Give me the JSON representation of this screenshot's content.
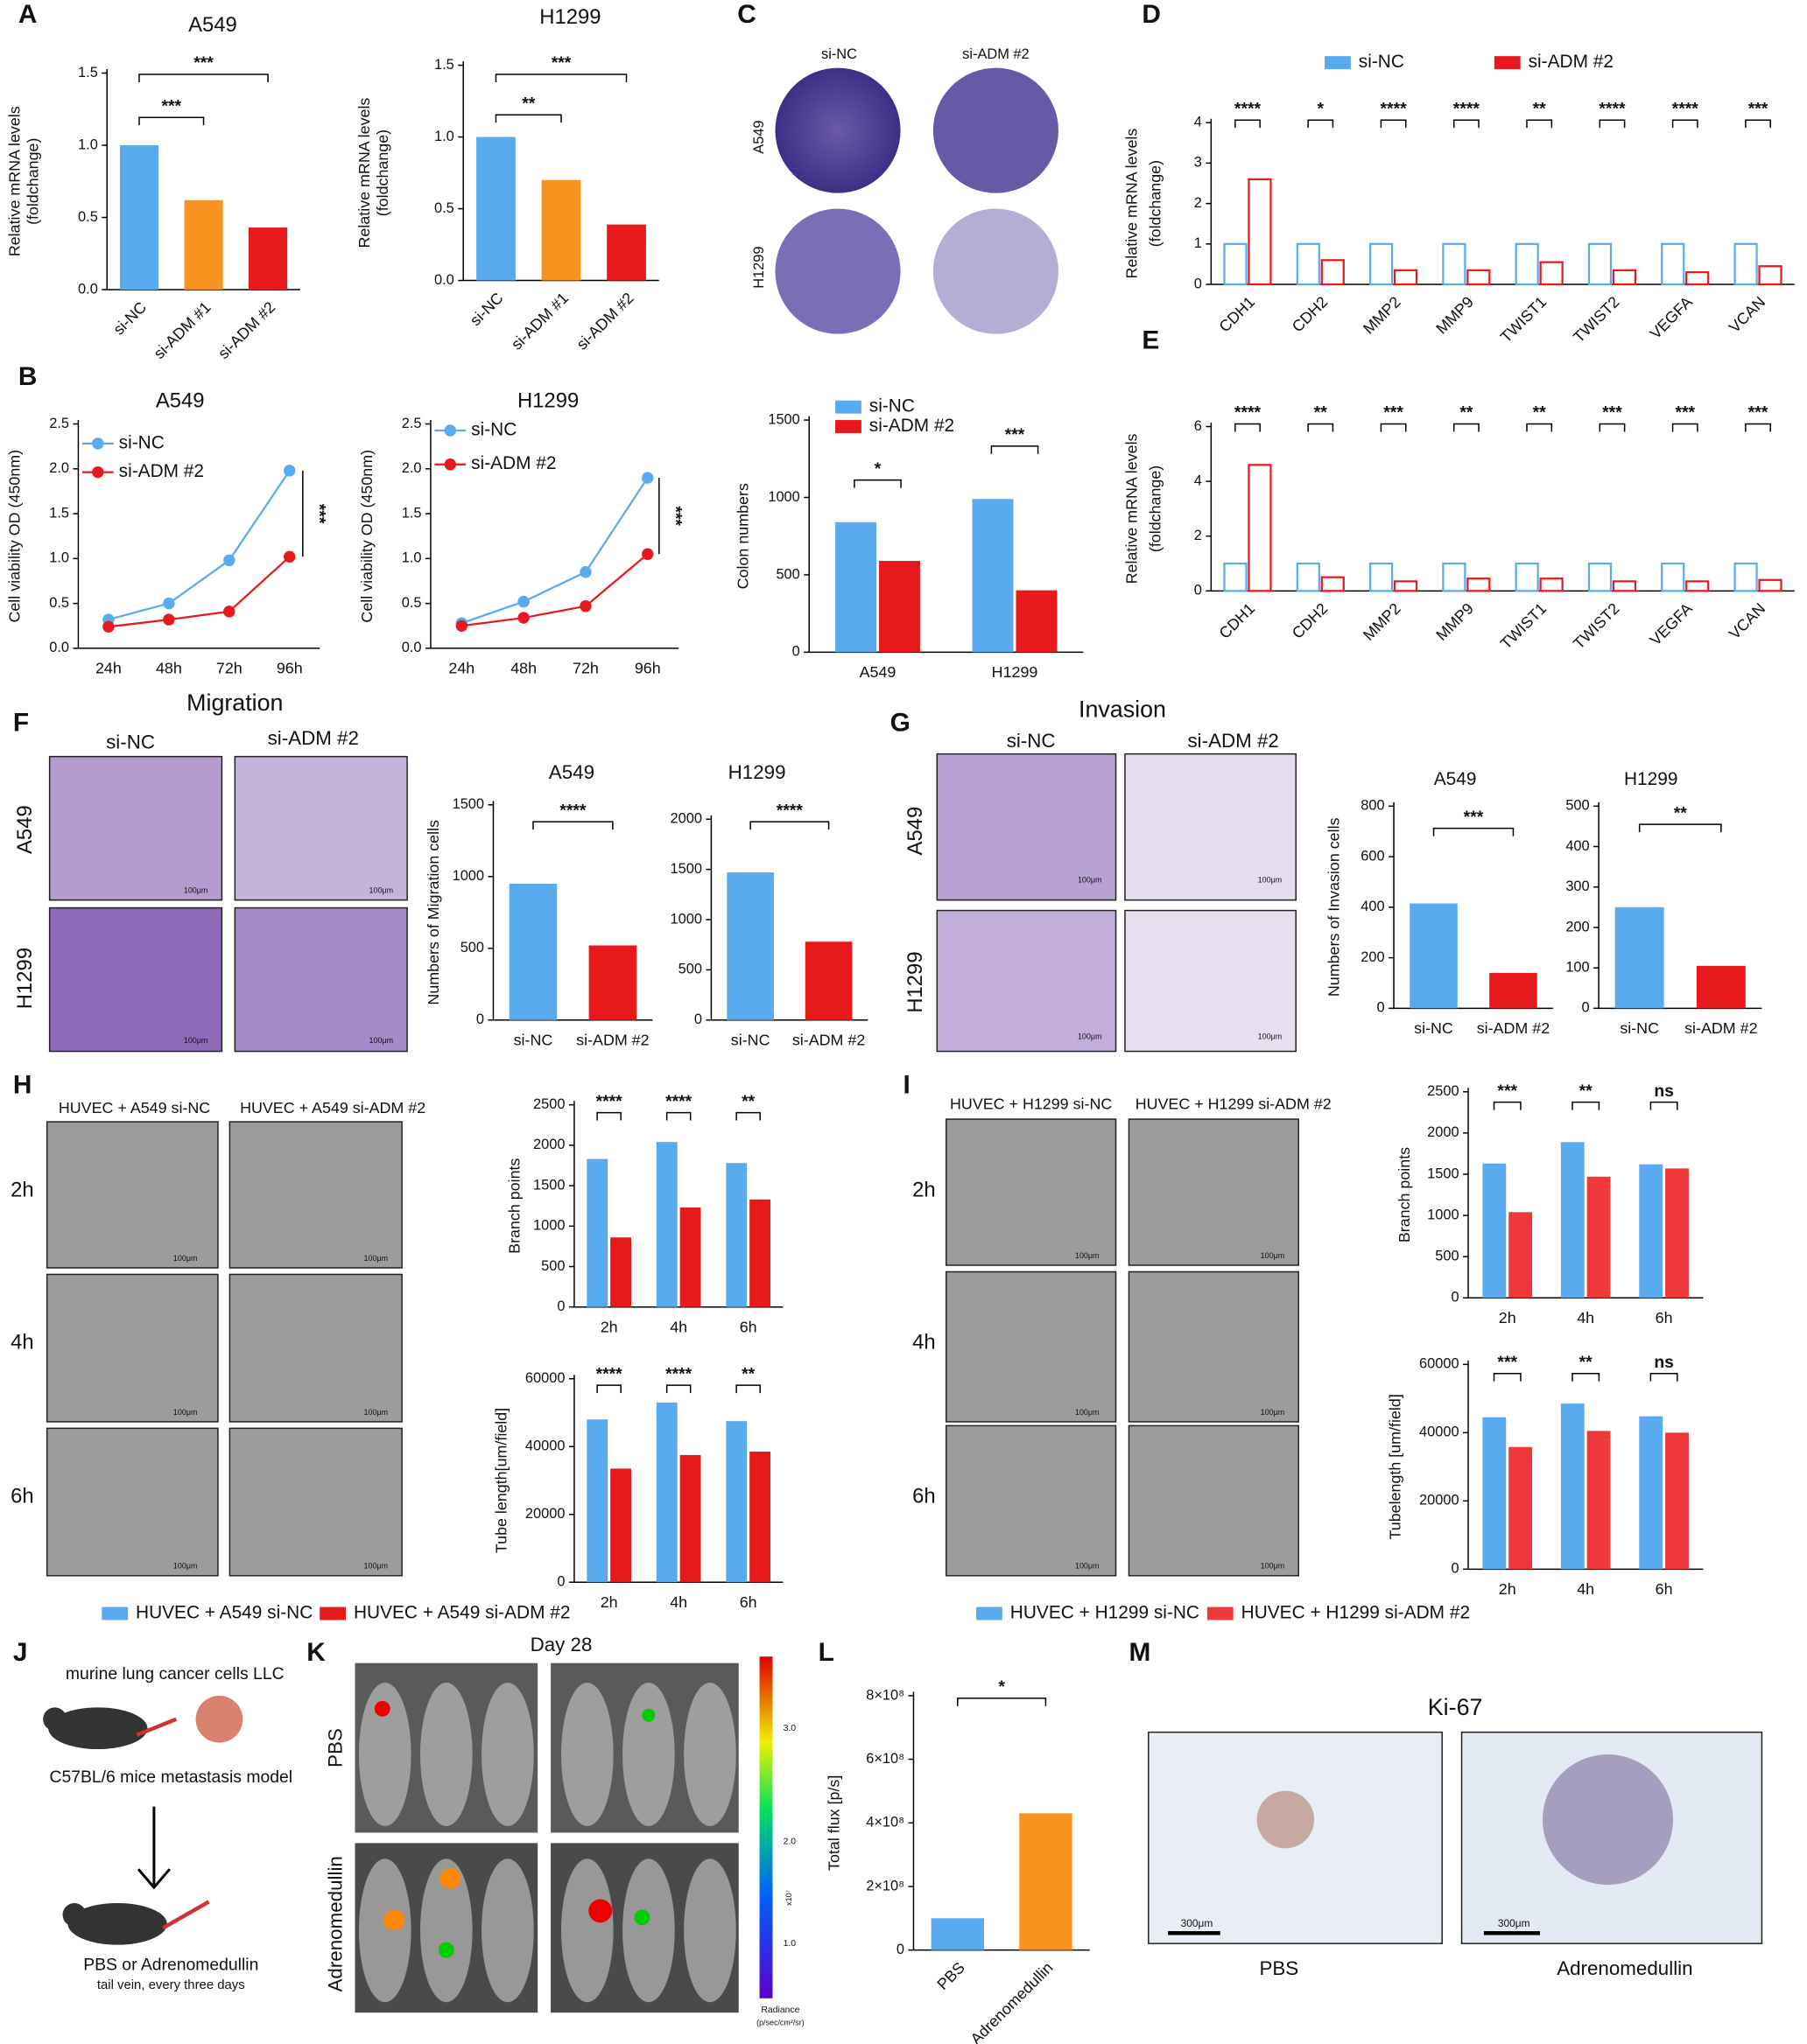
{
  "figure": {
    "letters": [
      "A",
      "B",
      "C",
      "D",
      "E",
      "F",
      "G",
      "H",
      "I",
      "J",
      "K",
      "L",
      "M"
    ],
    "C": {
      "cols": [
        "si-NC",
        "si-ADM #2"
      ],
      "rows": [
        "A549",
        "H1299"
      ]
    },
    "F": {
      "title": "Migration",
      "cols": [
        "si-NC",
        "si-ADM #2"
      ],
      "rows": [
        "A549",
        "H1299"
      ]
    },
    "G": {
      "title": "Invasion",
      "cols": [
        "si-NC",
        "si-ADM #2"
      ],
      "rows": [
        "A549",
        "H1299"
      ]
    },
    "H": {
      "cols": [
        "HUVEC + A549 si-NC",
        "HUVEC + A549 si-ADM #2"
      ],
      "rows": [
        "2h",
        "4h",
        "6h"
      ]
    },
    "I": {
      "cols": [
        "HUVEC + H1299 si-NC",
        "HUVEC + H1299 si-ADM #2"
      ],
      "rows": [
        "2h",
        "4h",
        "6h"
      ]
    },
    "J": {
      "cells": "murine lung cancer cells LLC",
      "model": "C57BL/6 mice metastasis model",
      "treatment": "PBS or Adrenomedullin",
      "schedule": "tail vein, every three days"
    },
    "K": {
      "title": "Day 28",
      "rows": [
        "PBS",
        "Adrenomedullin"
      ],
      "colorbar_ticks": [
        "3.0",
        "2.0",
        "1.0"
      ],
      "colorbar_exponent": "x10⁷",
      "colorbar_title": "Radiance",
      "colorbar_unit": "(p/sec/cm²/sr)"
    },
    "M": {
      "title": "Ki-67",
      "cols": [
        "PBS",
        "Adrenomedullin"
      ],
      "scale": "300μm"
    },
    "scale_bar": "100μm"
  },
  "chart_data": [
    {
      "type": "bar",
      "title": "A549",
      "categories": [
        "si-NC",
        "si-ADM #1",
        "si-ADM #2"
      ],
      "values": [
        1.0,
        0.62,
        0.43
      ],
      "colors": [
        "#5aaaf0",
        "#f7931e",
        "#e8191c"
      ],
      "ylim": [
        0,
        1.5
      ],
      "yticks": [
        {
          "value": 0,
          "label": "0.0"
        },
        {
          "value": 0.5,
          "label": "0.5"
        },
        {
          "value": 1,
          "label": "1.0"
        },
        {
          "value": 1.5,
          "label": "1.5"
        }
      ],
      "ylabel": [
        "Relative mRNA levels",
        "(foldchange)"
      ],
      "annotations": [
        "***",
        "***"
      ]
    },
    {
      "type": "bar",
      "title": "H1299",
      "categories": [
        "si-NC",
        "si-ADM #1",
        "si-ADM #2"
      ],
      "values": [
        1.0,
        0.7,
        0.39
      ],
      "colors": [
        "#5aaaf0",
        "#f7931e",
        "#e8191c"
      ],
      "ylim": [
        0,
        1.5
      ],
      "yticks": [
        {
          "value": 0,
          "label": "0.0"
        },
        {
          "value": 0.5,
          "label": "0.5"
        },
        {
          "value": 1,
          "label": "1.0"
        },
        {
          "value": 1.5,
          "label": "1.5"
        }
      ],
      "ylabel": [
        "Relative mRNA levels",
        "(foldchange)"
      ],
      "annotations": [
        "***",
        "**"
      ]
    },
    {
      "type": "line",
      "title": "A549",
      "categories": [
        "24h",
        "48h",
        "72h",
        "96h"
      ],
      "series": [
        {
          "name": "si-NC",
          "color": "#5aaaf0",
          "values": [
            0.32,
            0.5,
            0.98,
            1.98
          ]
        },
        {
          "name": "si-ADM #2",
          "color": "#e8191c",
          "values": [
            0.24,
            0.32,
            0.41,
            1.02
          ]
        }
      ],
      "ylim": [
        0,
        2.5
      ],
      "yticks": [
        {
          "value": 0,
          "label": "0.0"
        },
        {
          "value": 0.5,
          "label": "0.5"
        },
        {
          "value": 1,
          "label": "1.0"
        },
        {
          "value": 1.5,
          "label": "1.5"
        },
        {
          "value": 2,
          "label": "2.0"
        },
        {
          "value": 2.5,
          "label": "2.5"
        }
      ],
      "ylabel": [
        "Cell viability OD (450nm)"
      ],
      "annotations": [
        "***"
      ]
    },
    {
      "type": "line",
      "title": "H1299",
      "categories": [
        "24h",
        "48h",
        "72h",
        "96h"
      ],
      "series": [
        {
          "name": "si-NC",
          "color": "#5aaaf0",
          "values": [
            0.28,
            0.52,
            0.85,
            1.9
          ]
        },
        {
          "name": "si-ADM #2",
          "color": "#e8191c",
          "values": [
            0.25,
            0.34,
            0.47,
            1.05
          ]
        }
      ],
      "ylim": [
        0,
        2.5
      ],
      "yticks": [
        {
          "value": 0,
          "label": "0.0"
        },
        {
          "value": 0.5,
          "label": "0.5"
        },
        {
          "value": 1,
          "label": "1.0"
        },
        {
          "value": 1.5,
          "label": "1.5"
        },
        {
          "value": 2,
          "label": "2.0"
        },
        {
          "value": 2.5,
          "label": "2.5"
        }
      ],
      "ylabel": [
        "Cell viability OD (450nm)"
      ],
      "annotations": [
        "***"
      ]
    },
    {
      "type": "bar",
      "categories": [
        "A549",
        "H1299"
      ],
      "series": [
        {
          "name": "si-NC",
          "color": "#5aaaf0",
          "values": [
            840,
            990
          ]
        },
        {
          "name": "si-ADM #2",
          "color": "#e8191c",
          "values": [
            590,
            400
          ]
        }
      ],
      "ylim": [
        0,
        1500
      ],
      "yticks": [
        0,
        500,
        1000,
        1500
      ],
      "ylabel": [
        "Colon numbers"
      ],
      "annotations": [
        "*",
        "***"
      ]
    },
    {
      "type": "bar",
      "outline": true,
      "categories": [
        "CDH1",
        "CDH2",
        "MMP2",
        "MMP9",
        "TWIST1",
        "TWIST2",
        "VEGFA",
        "VCAN"
      ],
      "series": [
        {
          "name": "si-NC",
          "color": "#5aaaf0",
          "values": [
            1,
            1,
            1,
            1,
            1,
            1,
            1,
            1
          ]
        },
        {
          "name": "si-ADM #2",
          "color": "#e8191c",
          "values": [
            2.6,
            0.6,
            0.35,
            0.35,
            0.55,
            0.35,
            0.3,
            0.45
          ]
        }
      ],
      "ylim": [
        0,
        4
      ],
      "yticks": [
        0,
        1,
        2,
        3,
        4
      ],
      "ylabel": [
        "Relative mRNA levels",
        "(foldchange)"
      ],
      "annotations": [
        "****",
        "*",
        "****",
        "****",
        "**",
        "****",
        "****",
        "***"
      ]
    },
    {
      "type": "bar",
      "outline": true,
      "categories": [
        "CDH1",
        "CDH2",
        "MMP2",
        "MMP9",
        "TWIST1",
        "TWIST2",
        "VEGFA",
        "VCAN"
      ],
      "series": [
        {
          "name": "si-NC",
          "color": "#5aaaf0",
          "values": [
            1,
            1,
            1,
            1,
            1,
            1,
            1,
            1
          ]
        },
        {
          "name": "si-ADM #2",
          "color": "#e8191c",
          "values": [
            4.6,
            0.5,
            0.35,
            0.45,
            0.45,
            0.35,
            0.35,
            0.4
          ]
        }
      ],
      "ylim": [
        0,
        6
      ],
      "yticks": [
        0,
        2,
        4,
        6
      ],
      "ylabel": [
        "Relative mRNA levels",
        "(foldchange)"
      ],
      "annotations": [
        "****",
        "**",
        "***",
        "**",
        "**",
        "***",
        "***",
        "***"
      ]
    },
    {
      "type": "bar",
      "title": "A549",
      "categories": [
        "si-NC",
        "si-ADM #2"
      ],
      "values": [
        950,
        520
      ],
      "colors": [
        "#5aaaf0",
        "#e8191c"
      ],
      "ylim": [
        0,
        1500
      ],
      "yticks": [
        0,
        500,
        1000,
        1500
      ],
      "ylabel": [
        "Numbers of Migration cells"
      ],
      "annotations": [
        "****"
      ]
    },
    {
      "type": "bar",
      "title": "H1299",
      "categories": [
        "si-NC",
        "si-ADM #2"
      ],
      "values": [
        1470,
        780
      ],
      "colors": [
        "#5aaaf0",
        "#e8191c"
      ],
      "ylim": [
        0,
        2000
      ],
      "yticks": [
        0,
        500,
        1000,
        1500,
        2000
      ],
      "annotations": [
        "****"
      ]
    },
    {
      "type": "bar",
      "title": "A549",
      "categories": [
        "si-NC",
        "si-ADM #2"
      ],
      "values": [
        415,
        140
      ],
      "colors": [
        "#5aaaf0",
        "#e8191c"
      ],
      "ylim": [
        0,
        800
      ],
      "yticks": [
        0,
        200,
        400,
        600,
        800
      ],
      "ylabel": [
        "Numbers of Invasion cells"
      ],
      "annotations": [
        "***"
      ]
    },
    {
      "type": "bar",
      "title": "H1299",
      "categories": [
        "si-NC",
        "si-ADM #2"
      ],
      "values": [
        250,
        105
      ],
      "colors": [
        "#5aaaf0",
        "#e8191c"
      ],
      "ylim": [
        0,
        500
      ],
      "yticks": [
        0,
        100,
        200,
        300,
        400,
        500
      ],
      "annotations": [
        "**"
      ]
    },
    {
      "type": "bar",
      "categories": [
        "2h",
        "4h",
        "6h"
      ],
      "series": [
        {
          "name": "HUVEC + A549 si-NC",
          "color": "#5aaaf0",
          "values": [
            1830,
            2040,
            1780
          ]
        },
        {
          "name": "HUVEC + A549 si-ADM #2",
          "color": "#e8191c",
          "values": [
            860,
            1230,
            1330
          ]
        }
      ],
      "ylim": [
        0,
        2500
      ],
      "yticks": [
        0,
        500,
        1000,
        1500,
        2000,
        2500
      ],
      "ylabel": [
        "Branch points"
      ],
      "annotations": [
        "****",
        "****",
        "**"
      ]
    },
    {
      "type": "bar",
      "categories": [
        "2h",
        "4h",
        "6h"
      ],
      "series": [
        {
          "name": "HUVEC + A549 si-NC",
          "color": "#5aaaf0",
          "values": [
            48000,
            53000,
            47500
          ]
        },
        {
          "name": "HUVEC + A549 si-ADM #2",
          "color": "#e8191c",
          "values": [
            33500,
            37500,
            38500
          ]
        }
      ],
      "ylim": [
        0,
        60000
      ],
      "yticks": [
        0,
        20000,
        40000,
        60000
      ],
      "ylabel": [
        "Tube length[um/field]"
      ],
      "annotations": [
        "****",
        "****",
        "**"
      ]
    },
    {
      "type": "bar",
      "categories": [
        "2h",
        "4h",
        "6h"
      ],
      "series": [
        {
          "name": "HUVEC + H1299 si-NC",
          "color": "#5aaaf0",
          "values": [
            1630,
            1890,
            1620
          ]
        },
        {
          "name": "HUVEC + H1299 si-ADM #2",
          "color": "#f0383a",
          "values": [
            1040,
            1470,
            1570
          ]
        }
      ],
      "ylim": [
        0,
        2500
      ],
      "yticks": [
        0,
        500,
        1000,
        1500,
        2000,
        2500
      ],
      "ylabel": [
        "Branch points"
      ],
      "annotations": [
        "***",
        "**",
        "ns"
      ]
    },
    {
      "type": "bar",
      "categories": [
        "2h",
        "4h",
        "6h"
      ],
      "series": [
        {
          "name": "HUVEC + H1299 si-NC",
          "color": "#5aaaf0",
          "values": [
            44500,
            48500,
            44800
          ]
        },
        {
          "name": "HUVEC + H1299 si-ADM #2",
          "color": "#f0383a",
          "values": [
            35800,
            40500,
            40000
          ]
        }
      ],
      "ylim": [
        0,
        60000
      ],
      "yticks": [
        0,
        20000,
        40000,
        60000
      ],
      "ylabel": [
        "Tubelength [um/field]"
      ],
      "annotations": [
        "***",
        "**",
        "ns"
      ]
    },
    {
      "type": "bar",
      "categories": [
        "PBS",
        "Adrenomedullin"
      ],
      "values": [
        100000000,
        430000000
      ],
      "colors": [
        "#5aaaf0",
        "#f7931e"
      ],
      "ylim": [
        0,
        800000000
      ],
      "yticks": [
        0,
        {
          "value": 200000000,
          "label": "2×10⁸"
        },
        {
          "value": 400000000,
          "label": "4×10⁸"
        },
        {
          "value": 600000000,
          "label": "6×10⁸"
        },
        {
          "value": 800000000,
          "label": "8×10⁸"
        }
      ],
      "ylabel": [
        "Total flux [p/s]"
      ],
      "annotations": [
        "*"
      ]
    }
  ]
}
